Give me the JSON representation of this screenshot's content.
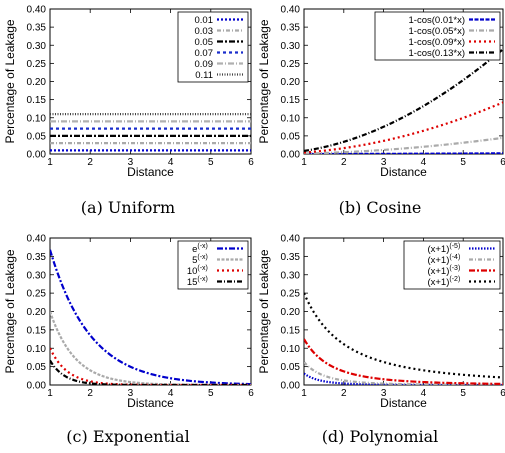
{
  "chart_data": [
    {
      "type": "line",
      "caption": "(a) Uniform",
      "xlabel": "Distance",
      "ylabel": "Percentage of Leakage",
      "xlim": [
        1,
        6
      ],
      "ylim": [
        0,
        0.4
      ],
      "xticks": [
        "1",
        "2",
        "3",
        "4",
        "5",
        "6"
      ],
      "yticks": [
        "0.00",
        "0.05",
        "0.10",
        "0.15",
        "0.20",
        "0.25",
        "0.30",
        "0.35",
        "0.40"
      ],
      "legend": "top-right",
      "grid": false,
      "series": [
        {
          "name": "0.01",
          "color": "#0000cc",
          "dash": "2,2",
          "width": 2.2,
          "fn": "const",
          "params": [
            0.01
          ]
        },
        {
          "name": "0.03",
          "color": "#aaaaaa",
          "dash": "4,2,1,2",
          "width": 2.2,
          "fn": "const",
          "params": [
            0.03
          ]
        },
        {
          "name": "0.05",
          "color": "#000000",
          "dash": "6,2,2,2",
          "width": 2.2,
          "fn": "const",
          "params": [
            0.05
          ]
        },
        {
          "name": "0.07",
          "color": "#1a2dcc",
          "dash": "3,3",
          "width": 2.2,
          "fn": "const",
          "params": [
            0.07
          ]
        },
        {
          "name": "0.09",
          "color": "#b0b0b0",
          "dash": "6,2,1,2",
          "width": 2.2,
          "fn": "const",
          "params": [
            0.09
          ]
        },
        {
          "name": "0.11",
          "color": "#444444",
          "dash": "1,1.5",
          "width": 2.2,
          "fn": "const",
          "params": [
            0.11
          ]
        }
      ]
    },
    {
      "type": "line",
      "caption": "(b) Cosine",
      "xlabel": "Distance",
      "ylabel": "Percentage of Leakage",
      "xlim": [
        1,
        6
      ],
      "ylim": [
        0,
        0.4
      ],
      "xticks": [
        "1",
        "2",
        "3",
        "4",
        "5",
        "6"
      ],
      "yticks": [
        "0.00",
        "0.05",
        "0.10",
        "0.15",
        "0.20",
        "0.25",
        "0.30",
        "0.35",
        "0.40"
      ],
      "legend": "top-right",
      "grid": false,
      "series": [
        {
          "name": "1-cos(0.01*x)",
          "color": "#0000cc",
          "dash": "4,1.5",
          "width": 2.2,
          "fn": "cos",
          "params": [
            0.01
          ]
        },
        {
          "name": "1-cos(0.05*x)",
          "color": "#aaaaaa",
          "dash": "5,2,1,2",
          "width": 2.2,
          "fn": "cos",
          "params": [
            0.05
          ]
        },
        {
          "name": "1-cos(0.09*x)",
          "color": "#dd0000",
          "dash": "2,3",
          "width": 2.2,
          "fn": "cos",
          "params": [
            0.09
          ]
        },
        {
          "name": "1-cos(0.13*x)",
          "color": "#000000",
          "dash": "5,2,1,2",
          "width": 2.2,
          "fn": "cos",
          "params": [
            0.13
          ]
        }
      ]
    },
    {
      "type": "line",
      "caption": "(c) Exponential",
      "xlabel": "Distance",
      "ylabel": "Percentage of Leakage",
      "xlim": [
        1,
        6
      ],
      "ylim": [
        0,
        0.4
      ],
      "xticks": [
        "1",
        "2",
        "3",
        "4",
        "5",
        "6"
      ],
      "yticks": [
        "0.00",
        "0.05",
        "0.10",
        "0.15",
        "0.20",
        "0.25",
        "0.30",
        "0.35",
        "0.40"
      ],
      "legend": "top-right",
      "grid": false,
      "series": [
        {
          "name": "e",
          "sup": "(-x)",
          "color": "#0000cc",
          "dash": "6,2,2,2",
          "width": 2.2,
          "fn": "exp",
          "params": [
            2.718
          ]
        },
        {
          "name": "5",
          "sup": "(-x)",
          "color": "#aaaaaa",
          "dash": "3,1.5",
          "width": 2.2,
          "fn": "exp",
          "params": [
            5
          ]
        },
        {
          "name": "10",
          "sup": "(-x)",
          "color": "#dd0000",
          "dash": "2,3",
          "width": 2.2,
          "fn": "exp",
          "params": [
            10
          ]
        },
        {
          "name": "15",
          "sup": "(-x)",
          "color": "#000000",
          "dash": "5,2,1,2",
          "width": 2.2,
          "fn": "exp",
          "params": [
            15
          ]
        }
      ]
    },
    {
      "type": "line",
      "caption": "(d) Polynomial",
      "xlabel": "Distance",
      "ylabel": "Percentage of Leakage",
      "xlim": [
        1,
        6
      ],
      "ylim": [
        0,
        0.4
      ],
      "xticks": [
        "1",
        "2",
        "3",
        "4",
        "5",
        "6"
      ],
      "yticks": [
        "0.00",
        "0.05",
        "0.10",
        "0.15",
        "0.20",
        "0.25",
        "0.30",
        "0.35",
        "0.40"
      ],
      "legend": "top-right",
      "grid": false,
      "series": [
        {
          "name": "(x+1)",
          "sup": "(-5)",
          "color": "#0000cc",
          "dash": "1.5,1.5",
          "width": 2.2,
          "fn": "poly",
          "params": [
            5
          ]
        },
        {
          "name": "(x+1)",
          "sup": "(-4)",
          "color": "#aaaaaa",
          "dash": "4,2,1,2",
          "width": 2.2,
          "fn": "poly",
          "params": [
            4
          ]
        },
        {
          "name": "(x+1)",
          "sup": "(-3)",
          "color": "#dd0000",
          "dash": "6,2,2,2",
          "width": 2.2,
          "fn": "poly",
          "params": [
            3
          ]
        },
        {
          "name": "(x+1)",
          "sup": "(-2)",
          "color": "#000000",
          "dash": "2,3",
          "width": 2.2,
          "fn": "poly",
          "params": [
            2
          ]
        }
      ]
    }
  ]
}
